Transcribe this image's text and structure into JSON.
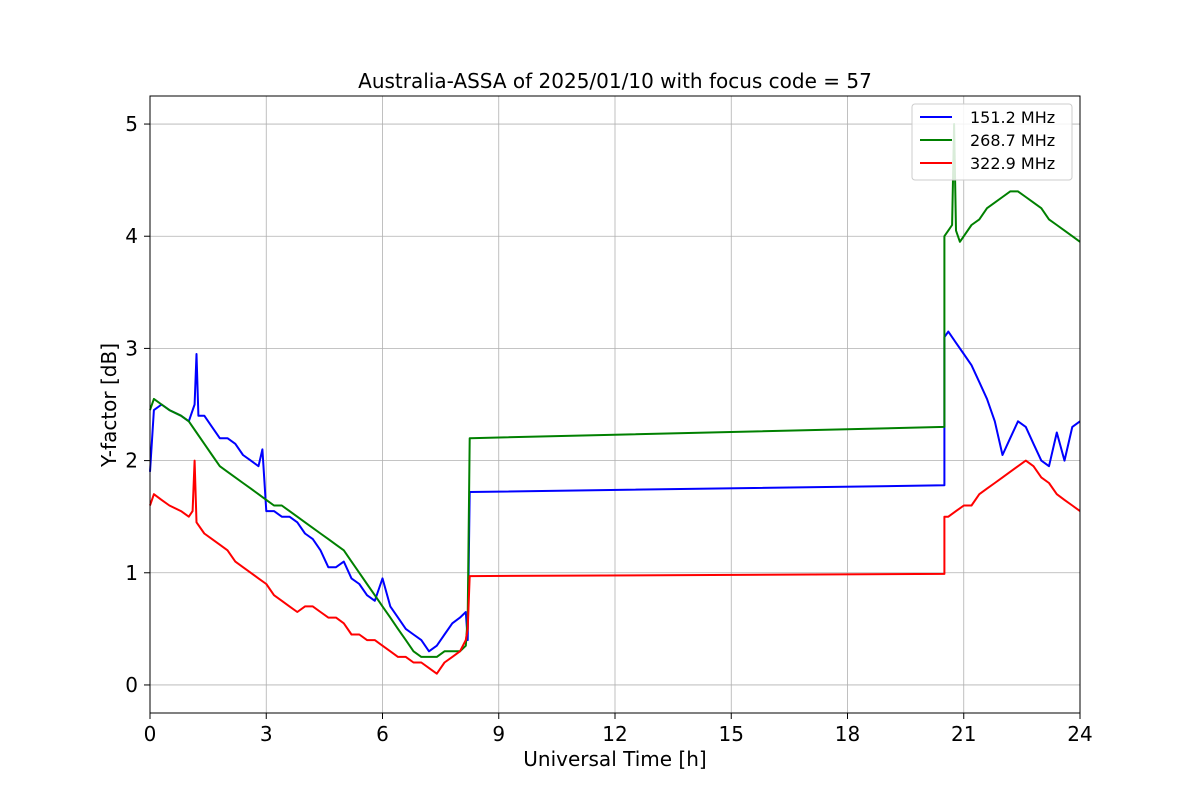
{
  "chart_data": {
    "type": "line",
    "title": "Australia-ASSA of 2025/01/10 with focus code = 57",
    "xlabel": "Universal Time [h]",
    "ylabel": "Y-factor [dB]",
    "xlim": [
      0,
      24
    ],
    "ylim": [
      -0.25,
      5.25
    ],
    "xticks": [
      0,
      3,
      6,
      9,
      12,
      15,
      18,
      21,
      24
    ],
    "yticks": [
      0,
      1,
      2,
      3,
      4,
      5
    ],
    "grid": true,
    "legend_position": "top-right",
    "series": [
      {
        "name": "151.2 MHz",
        "color": "#0000ff",
        "x": [
          0.0,
          0.1,
          0.3,
          0.5,
          0.8,
          1.0,
          1.15,
          1.2,
          1.25,
          1.4,
          1.6,
          1.8,
          2.0,
          2.2,
          2.4,
          2.6,
          2.8,
          2.9,
          3.0,
          3.2,
          3.4,
          3.6,
          3.8,
          4.0,
          4.2,
          4.4,
          4.6,
          4.8,
          5.0,
          5.2,
          5.4,
          5.6,
          5.8,
          6.0,
          6.2,
          6.4,
          6.6,
          6.8,
          7.0,
          7.2,
          7.4,
          7.6,
          7.8,
          8.0,
          8.15,
          8.2,
          8.25,
          20.5,
          20.5,
          20.6,
          20.8,
          21.0,
          21.2,
          21.4,
          21.6,
          21.8,
          22.0,
          22.2,
          22.4,
          22.6,
          22.8,
          23.0,
          23.2,
          23.4,
          23.6,
          23.8,
          24.0
        ],
        "y": [
          1.9,
          2.45,
          2.5,
          2.45,
          2.4,
          2.35,
          2.5,
          2.95,
          2.4,
          2.4,
          2.3,
          2.2,
          2.2,
          2.15,
          2.05,
          2.0,
          1.95,
          2.1,
          1.55,
          1.55,
          1.5,
          1.5,
          1.45,
          1.35,
          1.3,
          1.2,
          1.05,
          1.05,
          1.1,
          0.95,
          0.9,
          0.8,
          0.75,
          0.95,
          0.7,
          0.6,
          0.5,
          0.45,
          0.4,
          0.3,
          0.35,
          0.45,
          0.55,
          0.6,
          0.65,
          0.4,
          1.72,
          1.78,
          3.1,
          3.15,
          3.05,
          2.95,
          2.85,
          2.7,
          2.55,
          2.35,
          2.05,
          2.2,
          2.35,
          2.3,
          2.15,
          2.0,
          1.95,
          2.25,
          2.0,
          2.3,
          2.35
        ]
      },
      {
        "name": "268.7 MHz",
        "color": "#008000",
        "x": [
          0.0,
          0.1,
          0.3,
          0.5,
          0.8,
          1.0,
          1.2,
          1.4,
          1.6,
          1.8,
          2.0,
          2.2,
          2.4,
          2.6,
          2.8,
          3.0,
          3.2,
          3.4,
          3.6,
          3.8,
          4.0,
          4.2,
          4.4,
          4.6,
          4.8,
          5.0,
          5.2,
          5.4,
          5.6,
          5.8,
          6.0,
          6.2,
          6.4,
          6.6,
          6.8,
          7.0,
          7.2,
          7.4,
          7.6,
          7.8,
          8.0,
          8.15,
          8.2,
          8.25,
          20.5,
          20.5,
          20.6,
          20.7,
          20.75,
          20.8,
          20.9,
          21.0,
          21.2,
          21.4,
          21.6,
          21.8,
          22.0,
          22.2,
          22.4,
          22.6,
          22.8,
          23.0,
          23.2,
          23.4,
          23.6,
          23.8,
          24.0
        ],
        "y": [
          2.45,
          2.55,
          2.5,
          2.45,
          2.4,
          2.35,
          2.25,
          2.15,
          2.05,
          1.95,
          1.9,
          1.85,
          1.8,
          1.75,
          1.7,
          1.65,
          1.6,
          1.6,
          1.55,
          1.5,
          1.45,
          1.4,
          1.35,
          1.3,
          1.25,
          1.2,
          1.1,
          1.0,
          0.9,
          0.8,
          0.7,
          0.6,
          0.5,
          0.4,
          0.3,
          0.25,
          0.25,
          0.25,
          0.3,
          0.3,
          0.3,
          0.35,
          0.6,
          2.2,
          2.3,
          4.0,
          4.05,
          4.1,
          5.0,
          4.05,
          3.95,
          4.0,
          4.1,
          4.15,
          4.25,
          4.3,
          4.35,
          4.4,
          4.4,
          4.35,
          4.3,
          4.25,
          4.15,
          4.1,
          4.05,
          4.0,
          3.95
        ]
      },
      {
        "name": "322.9 MHz",
        "color": "#ff0000",
        "x": [
          0.0,
          0.1,
          0.3,
          0.5,
          0.8,
          1.0,
          1.1,
          1.15,
          1.2,
          1.4,
          1.6,
          1.8,
          2.0,
          2.2,
          2.4,
          2.6,
          2.8,
          3.0,
          3.2,
          3.4,
          3.6,
          3.8,
          4.0,
          4.2,
          4.4,
          4.6,
          4.8,
          5.0,
          5.2,
          5.4,
          5.6,
          5.8,
          6.0,
          6.2,
          6.4,
          6.6,
          6.8,
          7.0,
          7.2,
          7.4,
          7.6,
          7.8,
          8.0,
          8.15,
          8.2,
          8.25,
          20.5,
          20.5,
          20.6,
          20.8,
          21.0,
          21.2,
          21.4,
          21.6,
          21.8,
          22.0,
          22.2,
          22.4,
          22.6,
          22.8,
          23.0,
          23.2,
          23.4,
          23.6,
          23.8,
          24.0
        ],
        "y": [
          1.6,
          1.7,
          1.65,
          1.6,
          1.55,
          1.5,
          1.55,
          2.0,
          1.45,
          1.35,
          1.3,
          1.25,
          1.2,
          1.1,
          1.05,
          1.0,
          0.95,
          0.9,
          0.8,
          0.75,
          0.7,
          0.65,
          0.7,
          0.7,
          0.65,
          0.6,
          0.6,
          0.55,
          0.45,
          0.45,
          0.4,
          0.4,
          0.35,
          0.3,
          0.25,
          0.25,
          0.2,
          0.2,
          0.15,
          0.1,
          0.2,
          0.25,
          0.3,
          0.4,
          0.5,
          0.97,
          0.99,
          1.5,
          1.5,
          1.55,
          1.6,
          1.6,
          1.7,
          1.75,
          1.8,
          1.85,
          1.9,
          1.95,
          2.0,
          1.95,
          1.85,
          1.8,
          1.7,
          1.65,
          1.6,
          1.55
        ]
      }
    ]
  }
}
